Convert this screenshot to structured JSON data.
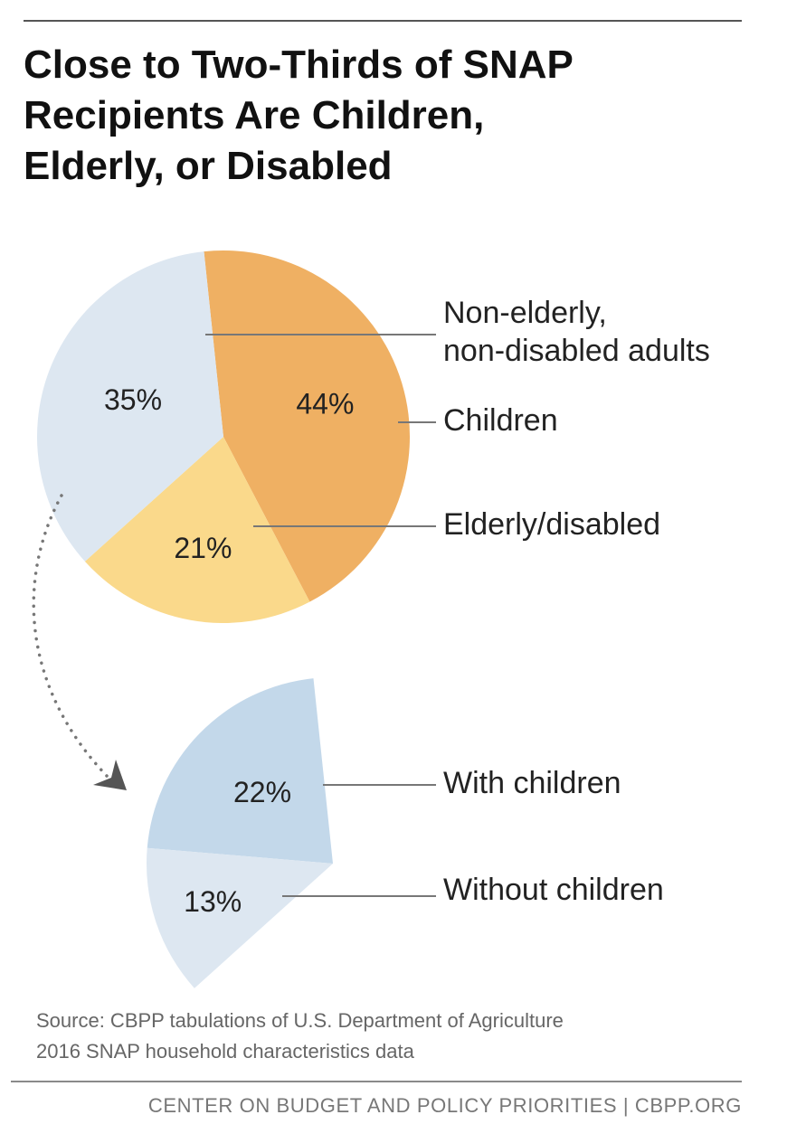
{
  "title_lines": [
    "Close to Two-Thirds of SNAP",
    "Recipients Are Children,",
    "Elderly, or Disabled"
  ],
  "source_lines": [
    "Source: CBPP tabulations of U.S. Department of Agriculture",
    "2016 SNAP household characteristics data"
  ],
  "footer": "CENTER ON BUDGET AND POLICY PRIORITIES | CBPP.ORG",
  "chart_data": [
    {
      "type": "pie",
      "slices": [
        {
          "label": "Children",
          "legend_lines": [
            "Children"
          ],
          "value": 44,
          "value_label": "44%",
          "color": "#EFB063"
        },
        {
          "label": "Elderly/disabled",
          "legend_lines": [
            "Elderly/disabled"
          ],
          "value": 21,
          "value_label": "21%",
          "color": "#FAD98B"
        },
        {
          "label": "Non-elderly, non-disabled adults",
          "legend_lines": [
            "Non-elderly,",
            "non-disabled adults"
          ],
          "value": 35,
          "value_label": "35%",
          "color": "#DDE7F1"
        }
      ]
    },
    {
      "type": "pie",
      "parent_slice": "Non-elderly, non-disabled adults",
      "slices": [
        {
          "label": "With children",
          "legend_lines": [
            "With children"
          ],
          "value": 22,
          "value_label": "22%",
          "color": "#C3D8EA"
        },
        {
          "label": "Without children",
          "legend_lines": [
            "Without children"
          ],
          "value": 13,
          "value_label": "13%",
          "color": "#DDE7F1"
        }
      ]
    }
  ]
}
